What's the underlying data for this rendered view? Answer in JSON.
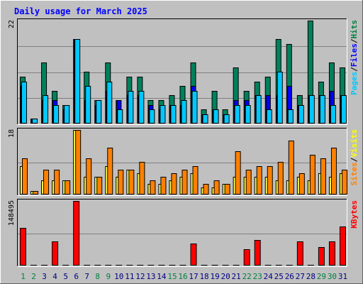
{
  "chart_data": {
    "type": "bar",
    "title": "Daily usage for March 2025",
    "categories": [
      "1",
      "2",
      "3",
      "4",
      "5",
      "6",
      "7",
      "8",
      "9",
      "10",
      "11",
      "12",
      "13",
      "14",
      "15",
      "16",
      "17",
      "18",
      "19",
      "20",
      "21",
      "22",
      "23",
      "24",
      "25",
      "26",
      "27",
      "28",
      "29",
      "30",
      "31"
    ],
    "weekend_days": [
      "1",
      "2",
      "8",
      "9",
      "15",
      "16",
      "22",
      "23",
      "29",
      "30"
    ],
    "panels": [
      {
        "id": "hits_files_pages",
        "ymax_label": "22",
        "ylim": [
          0,
          22
        ],
        "grid": true,
        "legend": [
          {
            "label": "Pages",
            "color": "#00c8ff"
          },
          {
            "label": "Files",
            "color": "#0000ff"
          },
          {
            "label": "Hits",
            "color": "#008040"
          }
        ],
        "series": [
          {
            "name": "Hits",
            "color": "#00805c",
            "values": [
              10,
              1,
              13,
              7,
              4,
              18,
              11,
              5,
              13,
              5,
              10,
              10,
              5,
              5,
              6,
              8,
              13,
              3,
              7,
              3,
              12,
              7,
              9,
              10,
              18,
              17,
              6,
              22,
              9,
              13,
              12
            ]
          },
          {
            "name": "Files",
            "color": "#0000ff",
            "values": [
              8,
              1,
              5,
              5,
              3,
              18,
              5,
              4,
              7,
              5,
              6,
              6,
              4,
              3,
              4,
              4,
              8,
              2,
              3,
              2,
              5,
              5,
              6,
              6,
              6,
              8,
              4,
              6,
              6,
              7,
              6
            ]
          },
          {
            "name": "Pages",
            "color": "#00c8ff",
            "values": [
              9,
              1,
              6,
              4,
              4,
              18,
              8,
              5,
              9,
              3,
              7,
              7,
              3,
              4,
              4,
              5,
              7,
              2,
              3,
              2,
              4,
              4,
              6,
              3,
              11,
              3,
              4,
              6,
              6,
              4,
              6
            ]
          }
        ]
      },
      {
        "id": "visits_sites",
        "ymax_label": "18",
        "ylim": [
          0,
          18
        ],
        "grid": true,
        "legend": [
          {
            "label": "Sites",
            "color": "#ff8000"
          },
          {
            "label": "Visits",
            "color": "#ffff00"
          }
        ],
        "series": [
          {
            "name": "Visits",
            "color": "#ffff40",
            "values": [
              8,
              1,
              4,
              4,
              4,
              18,
              5,
              5,
              8,
              5,
              7,
              6,
              3,
              3,
              4,
              5,
              6,
              2,
              2,
              3,
              5,
              5,
              5,
              5,
              4,
              4,
              5,
              4,
              6,
              5,
              6
            ]
          },
          {
            "name": "Sites",
            "color": "#ff8000",
            "values": [
              10,
              1,
              7,
              7,
              4,
              18,
              10,
              5,
              13,
              7,
              7,
              9,
              4,
              5,
              6,
              7,
              8,
              3,
              4,
              3,
              12,
              7,
              8,
              8,
              9,
              15,
              6,
              11,
              10,
              13,
              7
            ]
          }
        ]
      },
      {
        "id": "kbytes",
        "ymax_label": "148495",
        "ylim": [
          0,
          148495
        ],
        "grid": true,
        "legend": [
          {
            "label": "KBytes",
            "color": "#ff0000"
          }
        ],
        "series": [
          {
            "name": "KBytes",
            "color": "#ff0000",
            "values": [
              86000,
              0,
              0,
              56000,
              0,
              148495,
              0,
              0,
              0,
              0,
              0,
              0,
              0,
              0,
              0,
              0,
              50000,
              0,
              0,
              0,
              0,
              38000,
              58000,
              0,
              0,
              0,
              56000,
              0,
              42000,
              56000,
              90000
            ]
          }
        ]
      }
    ]
  },
  "colors": {
    "background": "#c0c0c0",
    "plot_bg": "#c0c0c0",
    "title_color": "#0000ff",
    "day_label": "#000080",
    "weekend_label": "#008040",
    "axis_label": "#000000",
    "legend_separator": "#000000"
  }
}
